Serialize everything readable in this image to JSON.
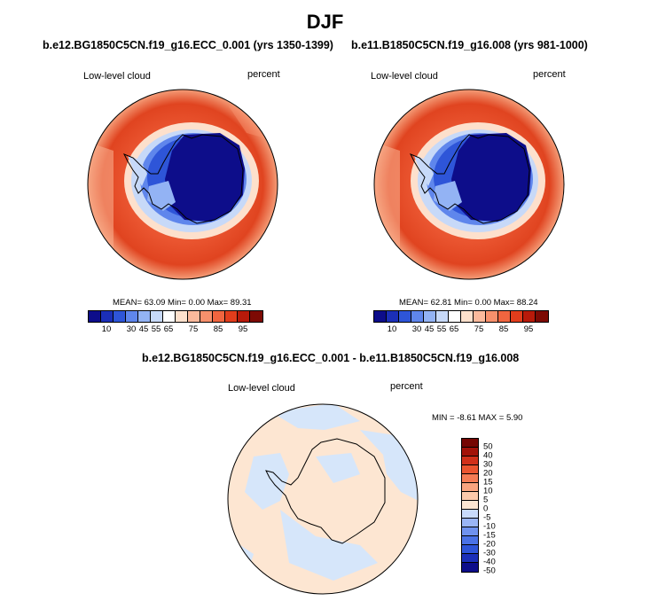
{
  "title": "DJF",
  "panels": [
    {
      "case": "b.e12.BG1850C5CN.f19_g16.ECC_0.001 (yrs 1350-1399)",
      "variable": "Low-level cloud",
      "units": "percent",
      "stats": "MEAN=  63.09  Min=   0.00  Max=  89.31"
    },
    {
      "case": "b.e11.B1850C5CN.f19_g16.008 (yrs 981-1000)",
      "variable": "Low-level cloud",
      "units": "percent",
      "stats": "MEAN=  62.81  Min=   0.00  Max=  88.24"
    }
  ],
  "diff_panel": {
    "case": "b.e12.BG1850C5CN.f19_g16.ECC_0.001 - b.e11.B1850C5CN.f19_g16.008",
    "variable": "Low-level cloud",
    "units": "percent",
    "stats": "MIN =  -8.61 MAX =   5.90"
  },
  "abs_colorbar": {
    "colors": [
      "#0d0d8a",
      "#1b2fb8",
      "#2e55d8",
      "#5f86ec",
      "#93b3f4",
      "#c7d9f8",
      "#ffffff",
      "#fde0cc",
      "#fbb99c",
      "#f7906c",
      "#f1653f",
      "#e23d1c",
      "#b81a0a",
      "#7d0a04"
    ],
    "labels": [
      "10",
      "30",
      "45",
      "55",
      "65",
      "75",
      "85",
      "95"
    ]
  },
  "diff_colorbar": {
    "colors": [
      "#0d0d8a",
      "#1b2fb8",
      "#2e55d8",
      "#4a72e6",
      "#6f92ef",
      "#9ab5f6",
      "#c9dbfb",
      "#fde6d2",
      "#fcc9ab",
      "#f9a47f",
      "#f47c55",
      "#ea5530",
      "#d0301a",
      "#a21209",
      "#750603"
    ],
    "labels": [
      "50",
      "40",
      "30",
      "20",
      "15",
      "10",
      "5",
      "0",
      "-5",
      "-10",
      "-15",
      "-20",
      "-30",
      "-40",
      "-50"
    ]
  },
  "colors": {
    "land_outline": "#000000",
    "ocean_high": "#e2431f",
    "ocean_mid": "#f37a4d",
    "ice_core": "#101a8c",
    "diff_positive": "#fde6d2",
    "diff_negative": "#d6e6fa"
  }
}
